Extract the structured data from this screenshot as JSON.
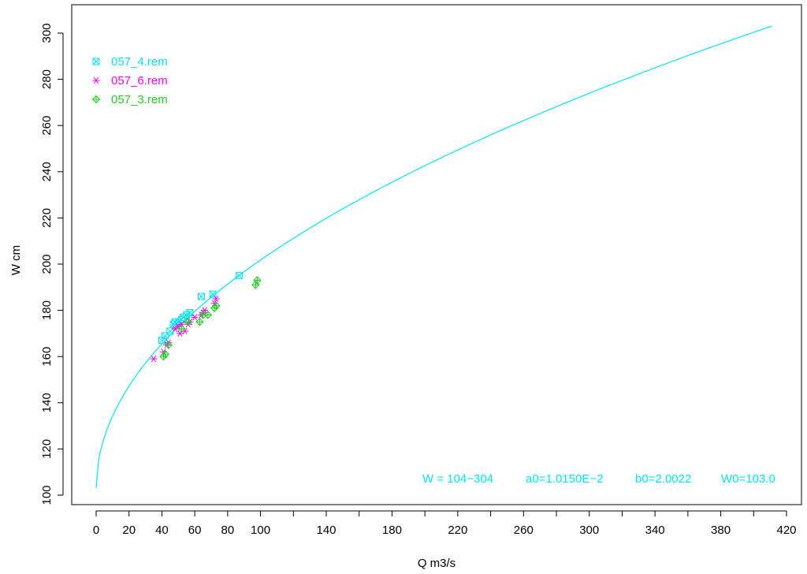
{
  "chart_data": {
    "type": "scatter",
    "title": "",
    "xlabel": "Q m3/s",
    "ylabel": "W cm",
    "xlim": [
      0,
      420
    ],
    "ylim": [
      100,
      310
    ],
    "x_ticks": [
      0,
      20,
      40,
      60,
      80,
      100,
      140,
      180,
      220,
      260,
      300,
      340,
      380,
      420
    ],
    "x_minor_ticks": [
      120,
      160,
      200,
      240,
      280,
      320,
      360,
      400
    ],
    "y_ticks": [
      100,
      120,
      140,
      160,
      180,
      200,
      220,
      240,
      260,
      280,
      300
    ],
    "grid": false,
    "legend_position": "top-left",
    "fit_curve": {
      "color": "#00e5ee",
      "a0": 0.01015,
      "b0": 2.0022,
      "W0": 103.0,
      "x_range": [
        0,
        411
      ]
    },
    "series": [
      {
        "name": "057_4.rem",
        "marker": "boxed-x",
        "color": "#00e5ee",
        "points": [
          [
            40,
            167
          ],
          [
            42,
            169
          ],
          [
            45,
            171
          ],
          [
            47,
            174
          ],
          [
            48,
            175
          ],
          [
            50,
            175
          ],
          [
            52,
            176
          ],
          [
            53,
            177
          ],
          [
            55,
            178
          ],
          [
            57,
            179
          ],
          [
            64,
            186
          ],
          [
            71,
            187
          ],
          [
            87,
            195
          ]
        ]
      },
      {
        "name": "057_6.rem",
        "marker": "asterisk",
        "color": "#ff00ff",
        "points": [
          [
            35,
            159
          ],
          [
            41,
            162
          ],
          [
            43,
            165
          ],
          [
            44,
            166
          ],
          [
            48,
            172
          ],
          [
            50,
            173
          ],
          [
            51,
            170
          ],
          [
            52,
            174
          ],
          [
            54,
            171
          ],
          [
            56,
            174
          ],
          [
            57,
            175
          ],
          [
            60,
            177
          ],
          [
            64,
            178
          ],
          [
            65,
            179
          ],
          [
            66,
            180
          ],
          [
            72,
            183
          ],
          [
            73,
            185
          ]
        ]
      },
      {
        "name": "057_3.rem",
        "marker": "diamond-plus",
        "color": "#22cc22",
        "points": [
          [
            41,
            160
          ],
          [
            42,
            161
          ],
          [
            44,
            165
          ],
          [
            52,
            172
          ],
          [
            56,
            175
          ],
          [
            63,
            175
          ],
          [
            65,
            178
          ],
          [
            68,
            178
          ],
          [
            72,
            181
          ],
          [
            73,
            182
          ],
          [
            97,
            191
          ],
          [
            98,
            193
          ]
        ]
      }
    ],
    "annotations": [
      "W = 104−304",
      "a0=1.0150E−2",
      "b0=2.0022",
      "W0=103.0"
    ]
  }
}
